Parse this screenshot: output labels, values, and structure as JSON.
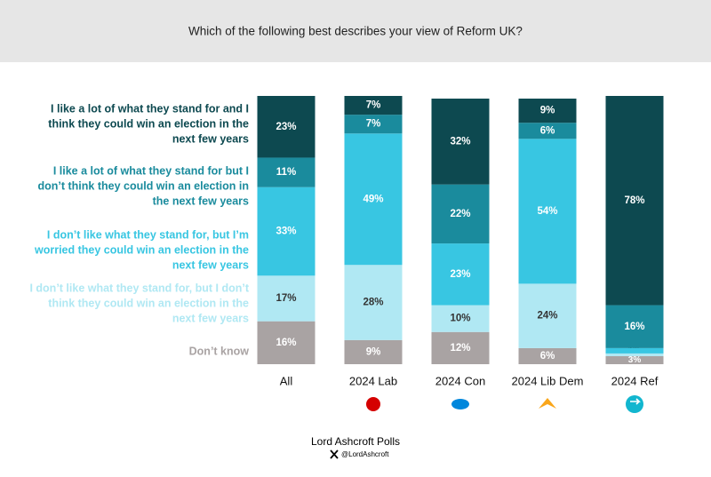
{
  "chart_data": {
    "type": "stacked-bar",
    "title": "Which of the following best describes your view of Reform UK?",
    "categories": [
      "All",
      "2024 Lab",
      "2024 Con",
      "2024 Lib Dem",
      "2024 Ref"
    ],
    "ylim": [
      0,
      100
    ],
    "series": [
      {
        "name": "Don’t know",
        "color": "#a9a3a3",
        "values": [
          16,
          9,
          12,
          6,
          3
        ],
        "value_labels": [
          "16%",
          "9%",
          "12%",
          "6%",
          "3%"
        ]
      },
      {
        "name": "I don’t like what they stand for, but I don’t think they could win an election in the next few years",
        "color": "#b0e8f3",
        "values": [
          17,
          28,
          10,
          24,
          1
        ],
        "value_labels": [
          "17%",
          "28%",
          "10%",
          "24%",
          "1%"
        ]
      },
      {
        "name": "I don’t like what they stand for, but I’m worried they could win an election in the next few years",
        "color": "#38c6e2",
        "values": [
          33,
          49,
          23,
          54,
          2
        ],
        "value_labels": [
          "33%",
          "49%",
          "23%",
          "54%",
          "2%"
        ]
      },
      {
        "name": "I like a lot of what they stand for but I don’t think they could win an election in the next few years",
        "color": "#1a8b9d",
        "values": [
          11,
          7,
          22,
          6,
          16
        ],
        "value_labels": [
          "11%",
          "7%",
          "22%",
          "6%",
          "16%"
        ]
      },
      {
        "name": "I like a lot of what they stand for and I think they could win an election in the next few years",
        "color": "#0d4950",
        "values": [
          23,
          7,
          32,
          9,
          78
        ],
        "value_labels": [
          "23%",
          "7%",
          "32%",
          "9%",
          "78%"
        ]
      }
    ]
  },
  "footer": {
    "source": "Lord Ashcroft Polls",
    "handle": "@LordAshcroft"
  }
}
